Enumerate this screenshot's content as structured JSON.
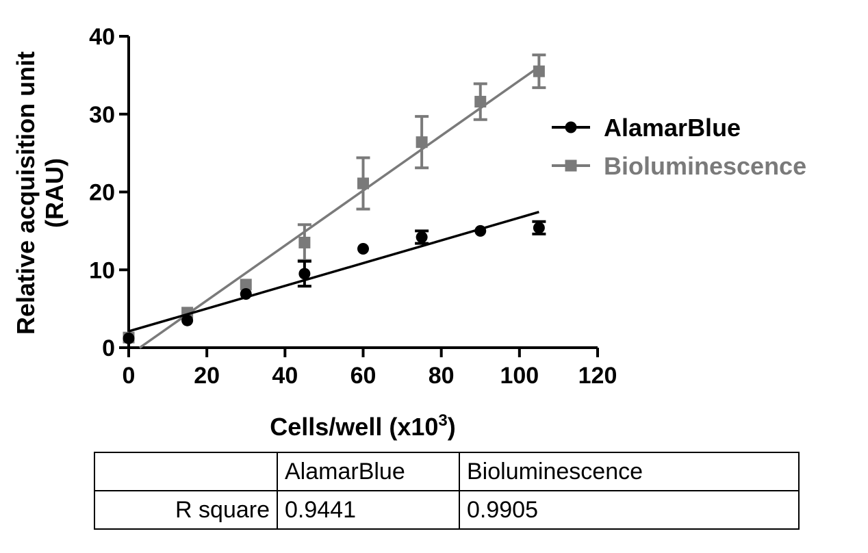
{
  "chart_data": {
    "type": "scatter",
    "xlabel": "Cells/well (x10",
    "xlabel_sup": "3",
    "xlabel_end": ")",
    "ylabel_line1": "Relative acquisition unit",
    "ylabel_line2": "(RAU)",
    "xlim": [
      0,
      120
    ],
    "ylim": [
      0,
      40
    ],
    "xticks": [
      0,
      20,
      40,
      60,
      80,
      100,
      120
    ],
    "yticks": [
      0,
      10,
      20,
      30,
      40
    ],
    "legend_position": "right",
    "series": [
      {
        "name": "AlamarBlue",
        "color": "#000000",
        "marker": "circle",
        "x": [
          0,
          15,
          30,
          45,
          60,
          75,
          90,
          105
        ],
        "y": [
          1.2,
          3.5,
          6.9,
          9.5,
          12.7,
          14.2,
          15.0,
          15.4
        ],
        "err": [
          0,
          0,
          0,
          1.6,
          0,
          0.8,
          0,
          0.8
        ],
        "fit": {
          "slope": 0.146,
          "intercept": 2.1,
          "x_range": [
            0,
            105
          ]
        }
      },
      {
        "name": "Bioluminescence",
        "color": "#7a7a7a",
        "marker": "square",
        "x": [
          0,
          15,
          30,
          45,
          60,
          75,
          90,
          105
        ],
        "y": [
          1.3,
          4.5,
          8.1,
          13.5,
          21.1,
          26.4,
          31.6,
          35.5
        ],
        "err": [
          0,
          0,
          0,
          2.3,
          3.3,
          3.3,
          2.3,
          2.1
        ],
        "fit": {
          "slope": 0.353,
          "intercept": -1.0,
          "x_range": [
            2.8,
            105
          ]
        }
      }
    ]
  },
  "table": {
    "headers": [
      "",
      "AlamarBlue",
      "Bioluminescence"
    ],
    "rows": [
      [
        "R square",
        "0.9441",
        "0.9905"
      ]
    ]
  }
}
